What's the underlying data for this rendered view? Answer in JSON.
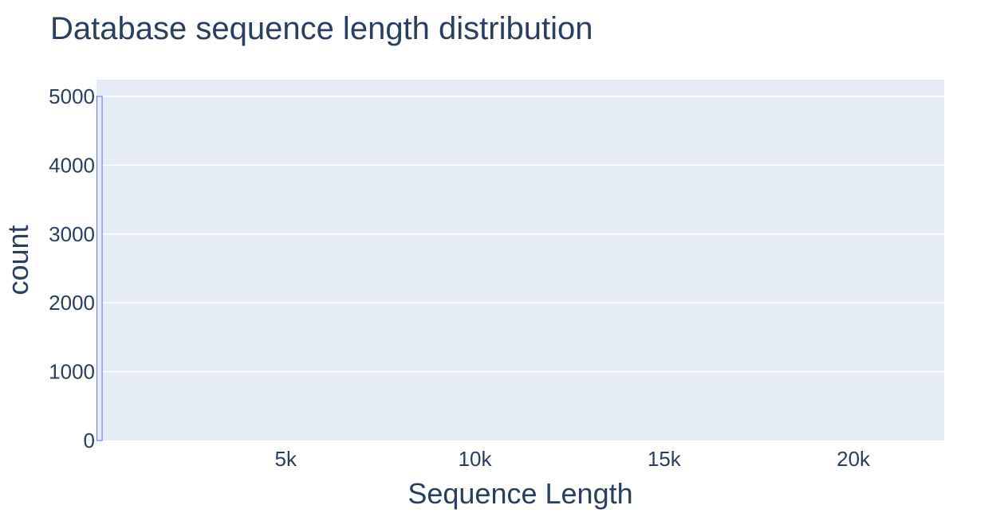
{
  "chart_data": {
    "type": "bar",
    "title": "Database sequence length distribution",
    "xlabel": "Sequence Length",
    "ylabel": "count",
    "xlim": [
      0,
      22400
    ],
    "ylim": [
      0,
      5000
    ],
    "x_ticks": [
      5000,
      10000,
      15000,
      20000
    ],
    "x_tick_labels": [
      "5k",
      "10k",
      "15k",
      "20k"
    ],
    "y_ticks": [
      0,
      1000,
      2000,
      3000,
      4000,
      5000
    ],
    "y_tick_labels": [
      "0",
      "1000",
      "2000",
      "3000",
      "4000",
      "5000"
    ],
    "grid": true,
    "bars": [
      {
        "x0": 0,
        "x1": 160,
        "value": 5000
      }
    ],
    "colors": {
      "plot_background": "#e5ecf6",
      "grid": "#ffffff",
      "bar_fill": "#e5ecf6",
      "bar_outline": "#636efa",
      "text": "#2a3f5f"
    }
  }
}
